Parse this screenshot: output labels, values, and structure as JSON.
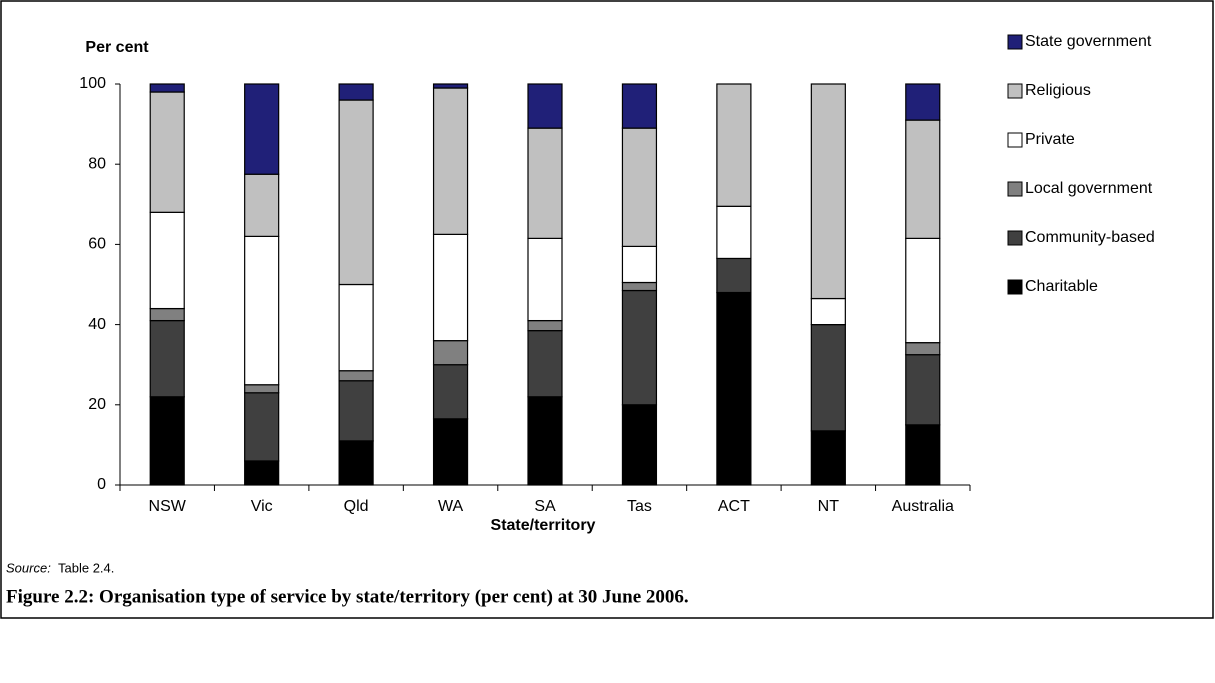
{
  "chart_data": {
    "type": "stacked_bar",
    "y_label": "Per cent",
    "x_label": "State/territory",
    "categories": [
      "NSW",
      "Vic",
      "Qld",
      "WA",
      "SA",
      "Tas",
      "ACT",
      "NT",
      "Australia"
    ],
    "series": [
      {
        "name": "Charitable",
        "color": "#000000",
        "values": [
          22,
          6,
          11,
          16.5,
          22,
          20,
          48,
          13.5,
          15
        ]
      },
      {
        "name": "Community-based",
        "color": "#404040",
        "values": [
          19,
          17,
          15,
          13.5,
          16.5,
          28.5,
          8.5,
          26.5,
          17.5
        ]
      },
      {
        "name": "Local government",
        "color": "#808080",
        "values": [
          3,
          2,
          2.5,
          6,
          2.5,
          2,
          0,
          0,
          3
        ]
      },
      {
        "name": "Private",
        "color": "#ffffff",
        "values": [
          24,
          37,
          21.5,
          26.5,
          20.5,
          9,
          13,
          6.5,
          26
        ]
      },
      {
        "name": "Religious",
        "color": "#c0c0c0",
        "values": [
          30,
          15.5,
          46,
          36.5,
          27.5,
          29.5,
          30.5,
          53.5,
          29.5
        ]
      },
      {
        "name": "State government",
        "color": "#202078",
        "values": [
          2,
          22.5,
          4,
          1,
          11,
          11,
          0,
          0,
          9
        ]
      }
    ],
    "ylim": [
      0,
      100
    ],
    "yticks": [
      0,
      20,
      40,
      60,
      80,
      100
    ],
    "legend": "right"
  },
  "source_label": "Source:",
  "source_text": "Table 2.4.",
  "caption": "Figure 2.2: Organisation type of service by state/territory (per cent) at 30 June 2006."
}
